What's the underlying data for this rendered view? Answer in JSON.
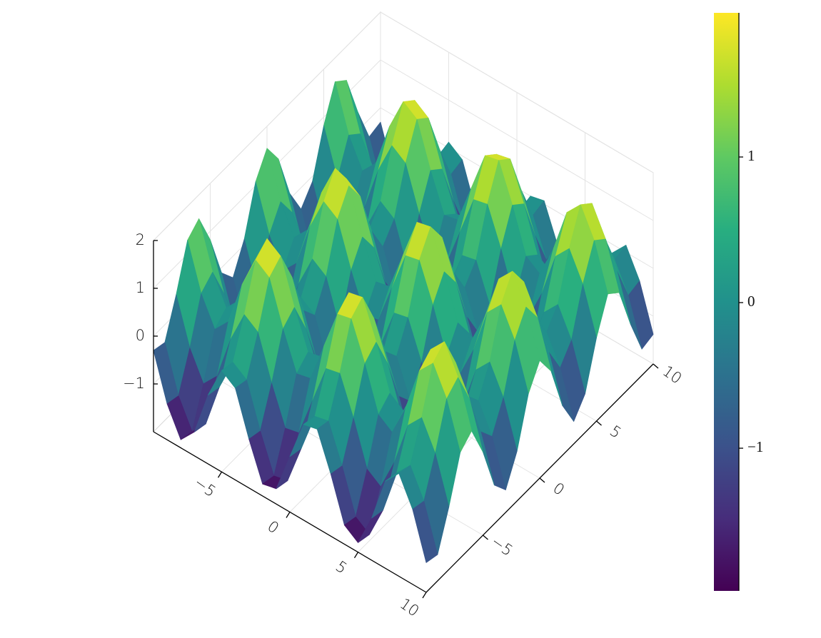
{
  "chart_data": {
    "type": "surface",
    "x": [
      -10,
      -9,
      -8,
      -7,
      -6,
      -5,
      -4,
      -3,
      -2,
      -1,
      0,
      1,
      2,
      3,
      4,
      5,
      6,
      7,
      8,
      9,
      10
    ],
    "y": [
      -10,
      -9,
      -8,
      -7,
      -6,
      -5,
      -4,
      -3,
      -2,
      -1,
      0,
      1,
      2,
      3,
      4,
      5,
      6,
      7,
      8,
      9,
      10
    ],
    "z": [
      [
        -0.3,
        -1.25,
        -1.83,
        -1.5,
        -0.56,
        0.12,
        -0.08,
        -0.98,
        -1.75,
        -1.68,
        -0.84,
        0,
        0.07,
        -0.7,
        -1.6,
        -1.8,
        -1.12,
        -0.18,
        0.15,
        -0.43,
        -1.38
      ],
      [
        -0.37,
        -1.32,
        -1.9,
        -1.57,
        -0.63,
        0.05,
        -0.15,
        -1.05,
        -1.82,
        -1.75,
        -0.91,
        -0.07,
        0,
        -0.77,
        -1.67,
        -1.87,
        -1.19,
        -0.25,
        0.08,
        -0.5,
        -1.45
      ],
      [
        0.39,
        -0.56,
        -1.14,
        -0.81,
        0.13,
        0.81,
        0.61,
        -0.29,
        -1.06,
        -0.99,
        -0.15,
        0.69,
        0.76,
        -0.01,
        -0.91,
        -1.11,
        -0.43,
        0.51,
        0.84,
        0.26,
        -0.69
      ],
      [
        1.29,
        0.34,
        -0.24,
        0.09,
        1.03,
        1.71,
        1.51,
        0.61,
        -0.16,
        -0.09,
        0.75,
        1.59,
        1.66,
        0.89,
        -0.01,
        -0.21,
        0.47,
        1.41,
        1.74,
        1.16,
        0.21
      ],
      [
        1.5,
        0.55,
        -0.03,
        0.3,
        1.24,
        1.92,
        1.72,
        0.82,
        0.05,
        0.12,
        0.96,
        1.8,
        1.87,
        1.1,
        0.2,
        0,
        0.68,
        1.62,
        1.95,
        1.37,
        0.42
      ],
      [
        0.82,
        -0.13,
        -0.71,
        -0.38,
        0.56,
        1.24,
        1.04,
        0.14,
        -0.63,
        -0.56,
        0.28,
        1.12,
        1.19,
        0.42,
        -0.48,
        -0.68,
        0,
        0.94,
        1.27,
        0.69,
        -0.26
      ],
      [
        -0.11,
        -1.06,
        -1.64,
        -1.31,
        -0.37,
        0.31,
        0.11,
        -0.79,
        -1.56,
        -1.49,
        -0.65,
        0.19,
        0.26,
        -0.51,
        -1.41,
        -1.61,
        -0.93,
        0.01,
        0.34,
        -0.24,
        -1.19
      ],
      [
        -0.45,
        -1.4,
        -1.98,
        -1.65,
        -0.71,
        -0.03,
        -0.23,
        -1.13,
        -1.9,
        -1.83,
        -0.99,
        -0.15,
        -0.08,
        -0.85,
        -1.75,
        -1.95,
        -1.27,
        -0.33,
        0,
        -0.58,
        -1.53
      ],
      [
        0.12,
        -0.83,
        -1.41,
        -1.08,
        -0.14,
        0.54,
        0.34,
        -0.56,
        -1.33,
        -1.26,
        -0.42,
        0.42,
        0.49,
        -0.28,
        -1.18,
        -1.38,
        -0.7,
        0.24,
        0.57,
        -0.01,
        -0.96
      ],
      [
        1.08,
        0.13,
        -0.45,
        -0.12,
        0.82,
        1.5,
        1.3,
        0.4,
        -0.37,
        -0.3,
        0.54,
        1.38,
        1.45,
        0.68,
        -0.22,
        -0.42,
        0.26,
        1.2,
        1.53,
        0.95,
        0
      ],
      [
        1.54,
        0.59,
        0.01,
        0.34,
        1.28,
        1.96,
        1.76,
        0.86,
        0.09,
        0.16,
        1,
        1.84,
        1.91,
        1.14,
        0.24,
        0.04,
        0.72,
        1.66,
        1.99,
        1.41,
        0.46
      ],
      [
        1.08,
        0.13,
        -0.45,
        -0.12,
        0.82,
        1.5,
        1.3,
        0.4,
        -0.37,
        -0.3,
        0.54,
        1.38,
        1.45,
        0.68,
        -0.22,
        -0.42,
        0.26,
        1.2,
        1.53,
        0.95,
        0
      ],
      [
        0.12,
        -0.83,
        -1.41,
        -1.08,
        -0.14,
        0.54,
        0.34,
        -0.56,
        -1.33,
        -1.26,
        -0.42,
        0.42,
        0.49,
        -0.28,
        -1.18,
        -1.38,
        -0.7,
        0.24,
        0.57,
        -0.01,
        -0.96
      ],
      [
        -0.45,
        -1.4,
        -1.98,
        -1.65,
        -0.71,
        -0.03,
        -0.23,
        -1.13,
        -1.9,
        -1.83,
        -0.99,
        -0.15,
        -0.08,
        -0.85,
        -1.75,
        -1.95,
        -1.27,
        -0.33,
        0,
        -0.58,
        -1.53
      ],
      [
        -0.11,
        -1.06,
        -1.64,
        -1.31,
        -0.37,
        0.31,
        0.11,
        -0.79,
        -1.56,
        -1.49,
        -0.65,
        0.19,
        0.26,
        -0.51,
        -1.41,
        -1.61,
        -0.93,
        0.01,
        0.34,
        -0.24,
        -1.19
      ],
      [
        0.82,
        -0.13,
        -0.71,
        -0.38,
        0.56,
        1.24,
        1.04,
        0.14,
        -0.63,
        -0.56,
        0.28,
        1.12,
        1.19,
        0.42,
        -0.48,
        -0.68,
        0,
        0.94,
        1.27,
        0.69,
        -0.26
      ],
      [
        1.5,
        0.55,
        -0.03,
        0.3,
        1.24,
        1.92,
        1.72,
        0.82,
        0.05,
        0.12,
        0.96,
        1.8,
        1.87,
        1.1,
        0.2,
        0,
        0.68,
        1.62,
        1.95,
        1.37,
        0.42
      ],
      [
        1.29,
        0.34,
        -0.24,
        0.09,
        1.03,
        1.71,
        1.51,
        0.61,
        -0.16,
        -0.09,
        0.75,
        1.59,
        1.66,
        0.89,
        -0.01,
        -0.21,
        0.47,
        1.41,
        1.74,
        1.16,
        0.21
      ],
      [
        0.39,
        -0.56,
        -1.14,
        -0.81,
        0.13,
        0.81,
        0.61,
        -0.29,
        -1.06,
        -0.99,
        -0.15,
        0.69,
        0.76,
        -0.01,
        -0.91,
        -1.11,
        -0.43,
        0.51,
        0.84,
        0.26,
        -0.69
      ],
      [
        -0.37,
        -1.32,
        -1.9,
        -1.57,
        -0.63,
        0.05,
        -0.15,
        -1.05,
        -1.82,
        -1.75,
        -0.91,
        -0.07,
        0,
        -0.77,
        -1.67,
        -1.87,
        -1.19,
        -0.25,
        0.08,
        -0.5,
        -1.45
      ],
      [
        -0.3,
        -1.25,
        -1.83,
        -1.5,
        -0.56,
        0.12,
        -0.08,
        -0.98,
        -1.75,
        -1.68,
        -0.84,
        0,
        0.07,
        -0.7,
        -1.6,
        -1.8,
        -1.12,
        -0.18,
        0.15,
        -0.43,
        -1.38
      ]
    ],
    "xlim": [
      -10,
      10
    ],
    "ylim": [
      -10,
      10
    ],
    "zlim": [
      -2,
      2
    ],
    "xticks": [
      {
        "value": -5,
        "label": "−5"
      },
      0,
      5,
      10
    ],
    "yticks": [
      {
        "value": -5,
        "label": "−5"
      },
      0,
      5,
      10
    ],
    "zticks": [
      {
        "value": -1,
        "label": "−1"
      },
      0,
      1,
      2
    ],
    "grid": true,
    "colormap": [
      "#440154",
      "#472d7b",
      "#3b528b",
      "#2c728e",
      "#21918c",
      "#28ae80",
      "#5ec962",
      "#addc30",
      "#fde725"
    ],
    "colorbar": {
      "lim": [
        -1.98,
        1.99
      ],
      "ticks": [
        {
          "value": -1,
          "label": "−1"
        },
        0,
        1
      ]
    }
  }
}
